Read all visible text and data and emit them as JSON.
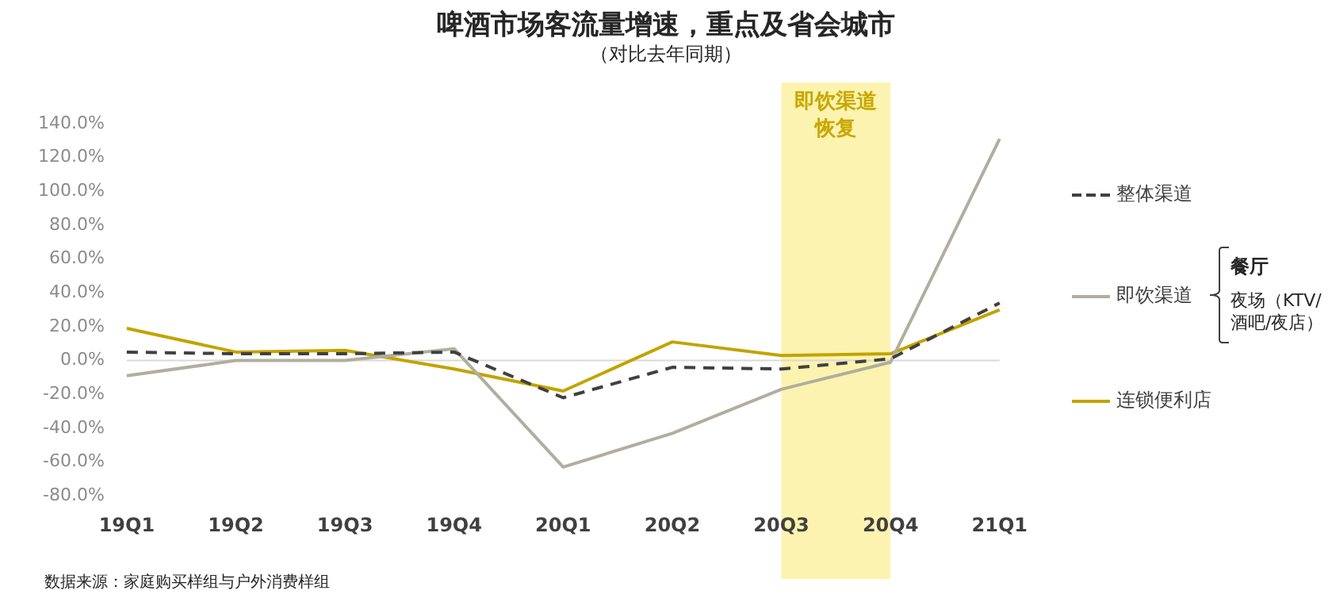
{
  "chart_data": {
    "type": "line",
    "title": "啤酒市场客流量增速，重点及省会城市",
    "subtitle": "（对比去年同期）",
    "categories": [
      "19Q1",
      "19Q2",
      "19Q3",
      "19Q4",
      "20Q1",
      "20Q2",
      "20Q3",
      "20Q4",
      "21Q1"
    ],
    "series": [
      {
        "name": "整体渠道",
        "color": "#404040",
        "line_style": "dashed",
        "values": [
          5,
          4,
          4,
          5,
          -22,
          -4,
          -5,
          1,
          34
        ]
      },
      {
        "name": "即饮渠道",
        "color": "#b0ae9e",
        "values": [
          -9,
          0,
          0,
          7,
          -63,
          -43,
          -17,
          -1,
          131
        ]
      },
      {
        "name": "连锁便利店",
        "color": "#c2a400",
        "values": [
          19,
          5,
          6,
          -5,
          -18,
          11,
          3,
          4,
          30
        ]
      }
    ],
    "ylim": [
      -80,
      140
    ],
    "yticks": [
      {
        "value": -80,
        "label": "-80.0%"
      },
      {
        "value": -60,
        "label": "-60.0%"
      },
      {
        "value": -40,
        "label": "-40.0%"
      },
      {
        "value": -20,
        "label": "-20.0%"
      },
      {
        "value": 0,
        "label": "0.0%"
      },
      {
        "value": 20,
        "label": "20.0%"
      },
      {
        "value": 40,
        "label": "40.0%"
      },
      {
        "value": 60,
        "label": "60.0%"
      },
      {
        "value": 80,
        "label": "80.0%"
      },
      {
        "value": 100,
        "label": "100.0%"
      },
      {
        "value": 120,
        "label": "120.0%"
      },
      {
        "value": 140,
        "label": "140.0%"
      }
    ],
    "grid": false,
    "legend": "right",
    "marker": "none",
    "ref_lines": [
      {
        "axis": "y",
        "value": 0,
        "color": "#d9d9d9"
      }
    ],
    "bands": [
      {
        "axis": "x",
        "from": "20Q3",
        "to": "20Q4",
        "label": "即饮渠道恢复",
        "color": "#fdf3b0"
      }
    ],
    "annotations": [
      "餐厅",
      "夜场（KTV/酒吧/夜店）",
      "数据来源：家庭购买样组与户外消费样组"
    ]
  }
}
